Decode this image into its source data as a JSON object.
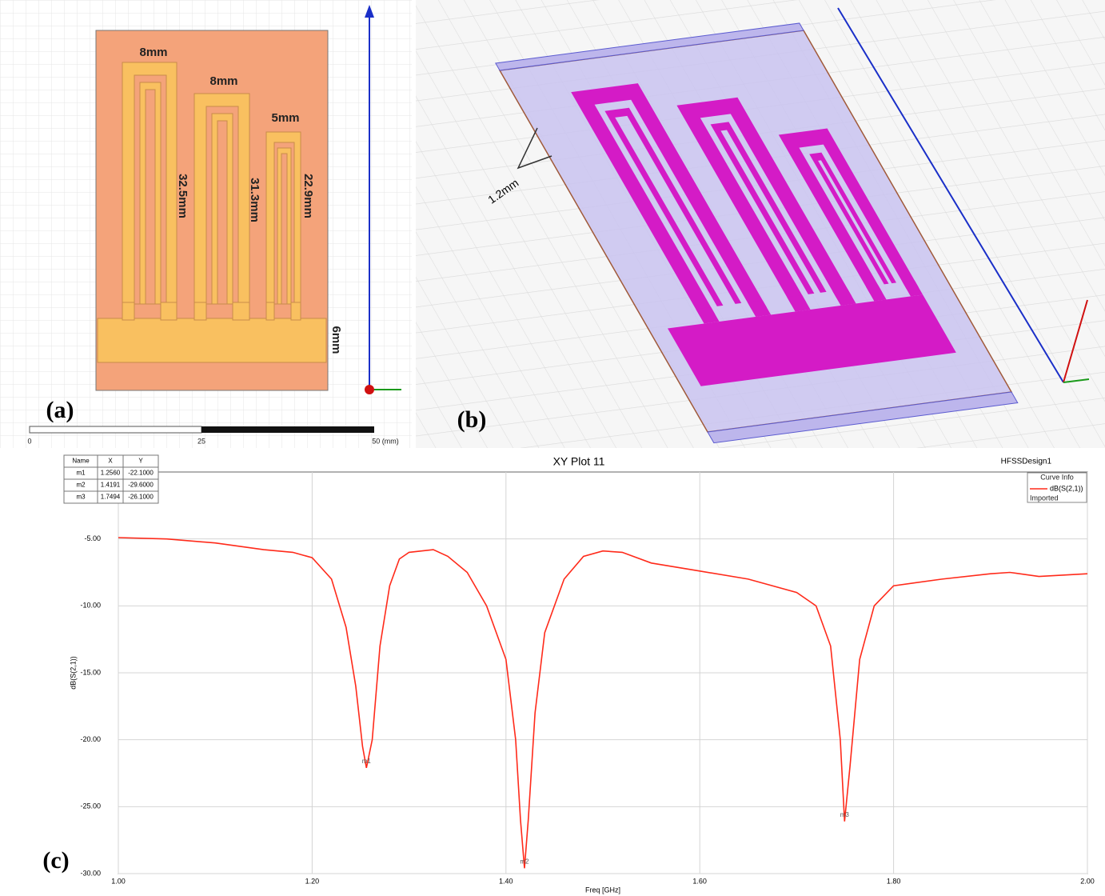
{
  "panel_a": {
    "label": "(a)",
    "dimensions": [
      "8mm",
      "8mm",
      "5mm",
      "32.5mm",
      "31.3mm",
      "22.9mm",
      "6mm"
    ],
    "scale_labels": [
      "0",
      "25",
      "50 (mm)"
    ]
  },
  "panel_b": {
    "label": "(b)",
    "thickness": "1.2mm"
  },
  "panel_c": {
    "label": "(c)"
  },
  "chart_data": {
    "type": "line",
    "title": "XY Plot 11",
    "design": "HFSSDesign1",
    "x_label": "Freq [GHz]",
    "y_label": "dB(S(2,1))",
    "legend_title": "Curve Info",
    "legend_note": "Imported",
    "xlim": [
      1.0,
      2.0
    ],
    "ylim": [
      -30,
      0
    ],
    "xticks": [
      {
        "value": 1.0,
        "label": "1.00"
      },
      {
        "value": 1.2,
        "label": "1.20"
      },
      {
        "value": 1.4,
        "label": "1.40"
      },
      {
        "value": 1.6,
        "label": "1.60"
      },
      {
        "value": 1.8,
        "label": "1.80"
      },
      {
        "value": 2.0,
        "label": "2.00"
      }
    ],
    "yticks": [
      {
        "value": -5,
        "label": "-5.00"
      },
      {
        "value": -10,
        "label": "-10.00"
      },
      {
        "value": -15,
        "label": "-15.00"
      },
      {
        "value": -20,
        "label": "-20.00"
      },
      {
        "value": -25,
        "label": "-25.00"
      },
      {
        "value": -30,
        "label": "-30.00"
      }
    ],
    "grid": true,
    "x": [
      1.0,
      1.05,
      1.1,
      1.15,
      1.18,
      1.2,
      1.22,
      1.235,
      1.245,
      1.252,
      1.256,
      1.262,
      1.27,
      1.28,
      1.29,
      1.3,
      1.325,
      1.34,
      1.36,
      1.38,
      1.4,
      1.41,
      1.415,
      1.4191,
      1.423,
      1.43,
      1.44,
      1.46,
      1.48,
      1.5,
      1.52,
      1.55,
      1.6,
      1.65,
      1.7,
      1.72,
      1.735,
      1.745,
      1.7494,
      1.755,
      1.765,
      1.78,
      1.8,
      1.85,
      1.9,
      1.92,
      1.95,
      2.0
    ],
    "series": [
      {
        "name": "dB(S(2,1))",
        "color": "#ff2a1a",
        "values": [
          -4.9,
          -5.0,
          -5.3,
          -5.8,
          -6.0,
          -6.4,
          -8.0,
          -11.6,
          -16,
          -20.5,
          -22.1,
          -20,
          -13,
          -8.5,
          -6.5,
          -6.0,
          -5.8,
          -6.3,
          -7.5,
          -10,
          -14,
          -20,
          -26,
          -29.6,
          -26,
          -18,
          -12,
          -8,
          -6.3,
          -5.9,
          -6.0,
          -6.8,
          -7.4,
          -8.0,
          -9.0,
          -10,
          -13,
          -20,
          -26.1,
          -22,
          -14,
          -10,
          -8.5,
          -8.0,
          -7.6,
          -7.5,
          -7.8,
          -7.6
        ]
      }
    ],
    "markers": {
      "columns": [
        "Name",
        "X",
        "Y"
      ],
      "rows": [
        [
          "m1",
          "1.2560",
          "-22.1000"
        ],
        [
          "m2",
          "1.4191",
          "-29.6000"
        ],
        [
          "m3",
          "1.7494",
          "-26.1000"
        ]
      ]
    }
  }
}
